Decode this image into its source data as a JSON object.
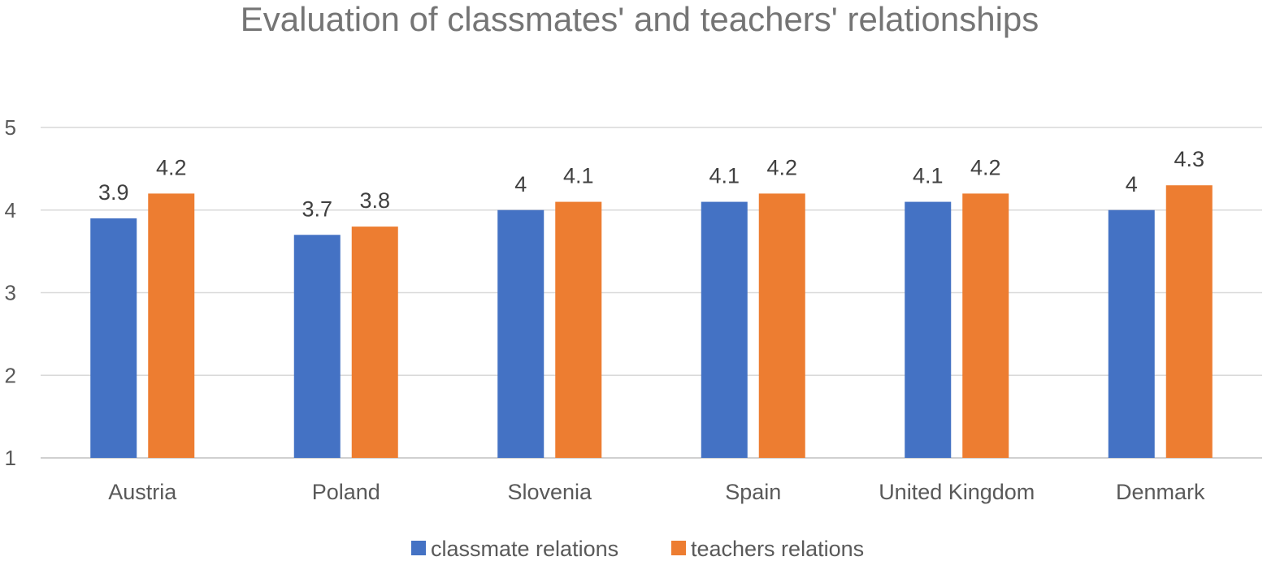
{
  "chart_data": {
    "type": "bar",
    "title": "Evaluation of classmates' and teachers' relationships",
    "xlabel": "",
    "ylabel": "",
    "categories": [
      "Austria",
      "Poland",
      "Slovenia",
      "Spain",
      "United Kingdom",
      "Denmark"
    ],
    "series": [
      {
        "name": "classmate relations",
        "color": "#4472C4",
        "values": [
          3.9,
          3.7,
          4,
          4.1,
          4.1,
          4
        ]
      },
      {
        "name": "teachers relations",
        "color": "#ED7D31",
        "values": [
          4.2,
          3.8,
          4.1,
          4.2,
          4.2,
          4.3
        ]
      }
    ],
    "ylim": [
      1,
      5
    ],
    "yticks": [
      "1",
      "2",
      "3",
      "4",
      "5"
    ],
    "grid": true,
    "legend_position": "bottom",
    "data_labels": true
  }
}
